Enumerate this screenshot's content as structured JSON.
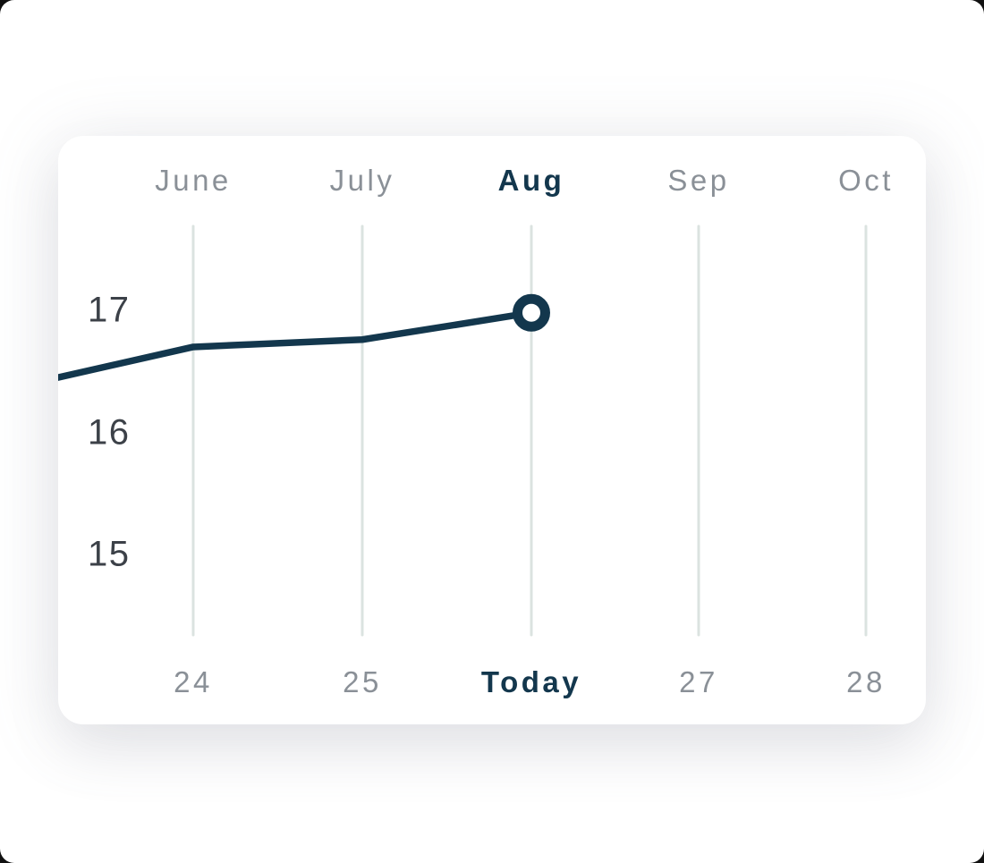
{
  "card": {
    "kind": "progress-trend-chart-card"
  },
  "colors": {
    "navy": "#13374D",
    "line": "#13374D",
    "axis_gray": "#8A9097",
    "tick_dark": "#3C4148",
    "gridline": "#DBE3E0",
    "marker_fill": "#FFFFFF",
    "card_bg": "#FFFFFF",
    "page_bg": "#FFFFFF"
  },
  "chart_data": {
    "type": "line",
    "title": "",
    "top_axis": {
      "labels": [
        "June",
        "July",
        "Aug",
        "Sep",
        "Oct"
      ],
      "highlighted": "Aug"
    },
    "bottom_axis": {
      "labels": [
        "24",
        "25",
        "Today",
        "27",
        "28"
      ],
      "highlighted": "Today"
    },
    "y_axis": {
      "ticks": [
        17,
        16,
        15
      ],
      "range_shown": [
        14.5,
        17.5
      ]
    },
    "grid": "vertical-only",
    "legend": "none",
    "series": [
      {
        "name": "trend",
        "x": [
          "start-edge",
          "24",
          "25",
          "Today"
        ],
        "values": [
          16.45,
          16.7,
          16.76,
          16.98
        ]
      }
    ],
    "marker": {
      "x": "Today",
      "value": 16.98,
      "style": "hollow-circle"
    }
  }
}
